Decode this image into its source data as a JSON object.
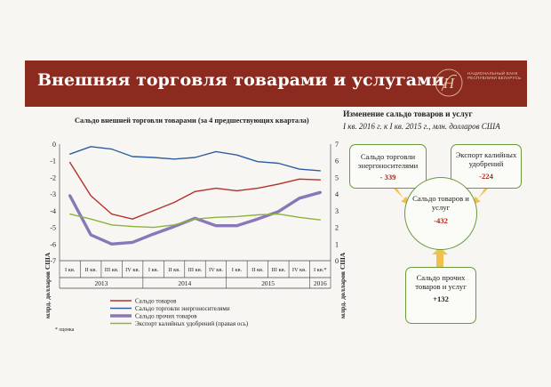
{
  "banner": {
    "title": "Внешняя торговля товарами и услугами",
    "logo_text": "Национальный банк Республики Беларусь"
  },
  "chart": {
    "title": "Сальдо внешней торговли товарами (за 4 предшествующих квартала)",
    "ylabel_left": "млрд. долларов США",
    "ylabel_right": "млрд. долларов США",
    "note": "* оценка"
  },
  "chart_data": {
    "type": "line",
    "categories": [
      "I кв.",
      "II кв.",
      "III кв.",
      "IV кв.",
      "I кв.",
      "II кв.",
      "III кв.",
      "IV кв.",
      "I кв.",
      "II кв.",
      "III кв.",
      "IV кв.",
      "I кв.*"
    ],
    "years": [
      {
        "label": "2013",
        "start": 0,
        "end": 3
      },
      {
        "label": "2014",
        "start": 4,
        "end": 7
      },
      {
        "label": "2015",
        "start": 8,
        "end": 11
      },
      {
        "label": "2016",
        "start": 12,
        "end": 12
      }
    ],
    "ylim_left": [
      -7,
      0
    ],
    "ylim_right": [
      0,
      7
    ],
    "yticks_left": [
      "0",
      "-1",
      "-2",
      "-3",
      "-4",
      "-5",
      "-6",
      "-7"
    ],
    "yticks_right": [
      "7",
      "6",
      "5",
      "4",
      "3",
      "2",
      "1",
      "0"
    ],
    "series": [
      {
        "name": "Сальдо товаров",
        "axis": "left",
        "color": "#b5302a",
        "width": 1.4,
        "values": [
          -1.1,
          -3.1,
          -4.2,
          -4.5,
          -4.0,
          -3.5,
          -2.85,
          -2.65,
          -2.8,
          -2.65,
          -2.4,
          -2.1,
          -2.15
        ]
      },
      {
        "name": "Сальдо торговли энергоносителями",
        "axis": "left",
        "color": "#2d5fa0",
        "width": 1.4,
        "values": [
          -0.6,
          -0.15,
          -0.3,
          -0.75,
          -0.8,
          -0.9,
          -0.8,
          -0.45,
          -0.65,
          -1.05,
          -1.15,
          -1.5,
          -1.6
        ]
      },
      {
        "name": "Сальдо прочих товаров",
        "axis": "left",
        "color": "#8878b8",
        "width": 3.4,
        "values": [
          -3.1,
          -5.45,
          -6.0,
          -5.9,
          -5.4,
          -4.95,
          -4.45,
          -4.9,
          -4.9,
          -4.5,
          -4.05,
          -3.25,
          -2.9
        ]
      },
      {
        "name": "Экспорт калийных удобрений (правая ось)",
        "axis": "right",
        "color": "#8fb23c",
        "width": 1.4,
        "values": [
          2.8,
          2.5,
          2.15,
          2.05,
          2.0,
          2.15,
          2.5,
          2.6,
          2.65,
          2.75,
          2.8,
          2.6,
          2.45
        ]
      }
    ]
  },
  "right_panel": {
    "title": "Изменение сальдо товаров и услуг",
    "subtitle": "I кв. 2016 г. к I кв. 2015 г., млн. долларов США",
    "energy_label": "Сальдо торговли энергоносителями",
    "energy_value": "- 339",
    "potash_label": "Экспорт калийных удобрений",
    "potash_value": "-224",
    "center_label": "Сальдо товаров и услуг",
    "center_value": "-432",
    "other_label": "Сальдо прочих товаров и услуг",
    "other_value": "+132",
    "arrow_color": "#f0c14b"
  }
}
